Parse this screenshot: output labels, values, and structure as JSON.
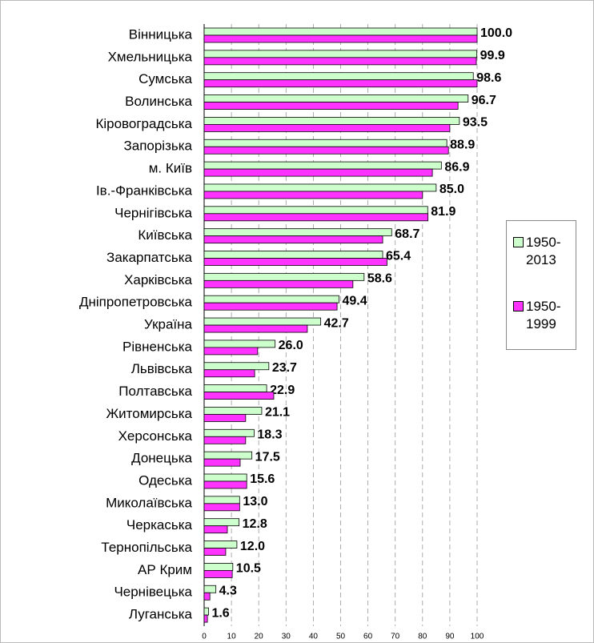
{
  "chart_data": {
    "type": "bar",
    "orientation": "horizontal",
    "categories": [
      "Вінницька",
      "Хмельницька",
      "Сумська",
      "Волинська",
      "Кіровоградська",
      "Запорізька",
      "м. Київ",
      "Ів.-Франківська",
      "Чернігівська",
      "Київська",
      "Закарпатська",
      "Харківська",
      "Дніпропетровська",
      "Україна",
      "Рівненська",
      "Львівська",
      "Полтавська",
      "Житомирська",
      "Херсонська",
      "Донецька",
      "Одеська",
      "Миколаївська",
      "Черкаська ",
      "Тернопільська",
      "АР Крим",
      "Чернівецька",
      "Луганська"
    ],
    "series": [
      {
        "name": "1950-2013",
        "color": "#ccffcc",
        "values": [
          100,
          99.9,
          98.6,
          96.7,
          93.5,
          88.9,
          86.9,
          85,
          81.9,
          68.7,
          65.4,
          58.6,
          49.4,
          42.7,
          26,
          23.7,
          22.9,
          21.1,
          18.3,
          17.5,
          15.6,
          13,
          12.8,
          12,
          10.5,
          4.3,
          1.6
        ],
        "value_labels": [
          "100.0",
          "99.9",
          "98.6",
          "96.7",
          "93.5",
          "88.9",
          "86.9",
          "85.0",
          "81.9",
          "68.7",
          "65.4",
          "58.6",
          "49.4",
          "42.7",
          "26.0",
          "23.7",
          "22.9",
          "21.1",
          "18.3",
          "17.5",
          "15.6",
          "13.0",
          "12.8",
          "12.0",
          "10.5",
          "4.3",
          "1.6"
        ]
      },
      {
        "name": "1950-1999",
        "color": "#ff33ff",
        "values": [
          100,
          99.7,
          100,
          93,
          90,
          89.5,
          83.6,
          80,
          82,
          65.4,
          67,
          54.5,
          48.7,
          37.8,
          19.6,
          18.5,
          25.5,
          15.2,
          15.2,
          13.2,
          15.6,
          13,
          8.5,
          7.9,
          10.3,
          2.1,
          1.2
        ]
      }
    ],
    "xlim": [
      0,
      100
    ],
    "xticks": [
      0,
      10,
      20,
      30,
      40,
      50,
      60,
      70,
      80,
      90,
      100
    ],
    "grid": true
  }
}
